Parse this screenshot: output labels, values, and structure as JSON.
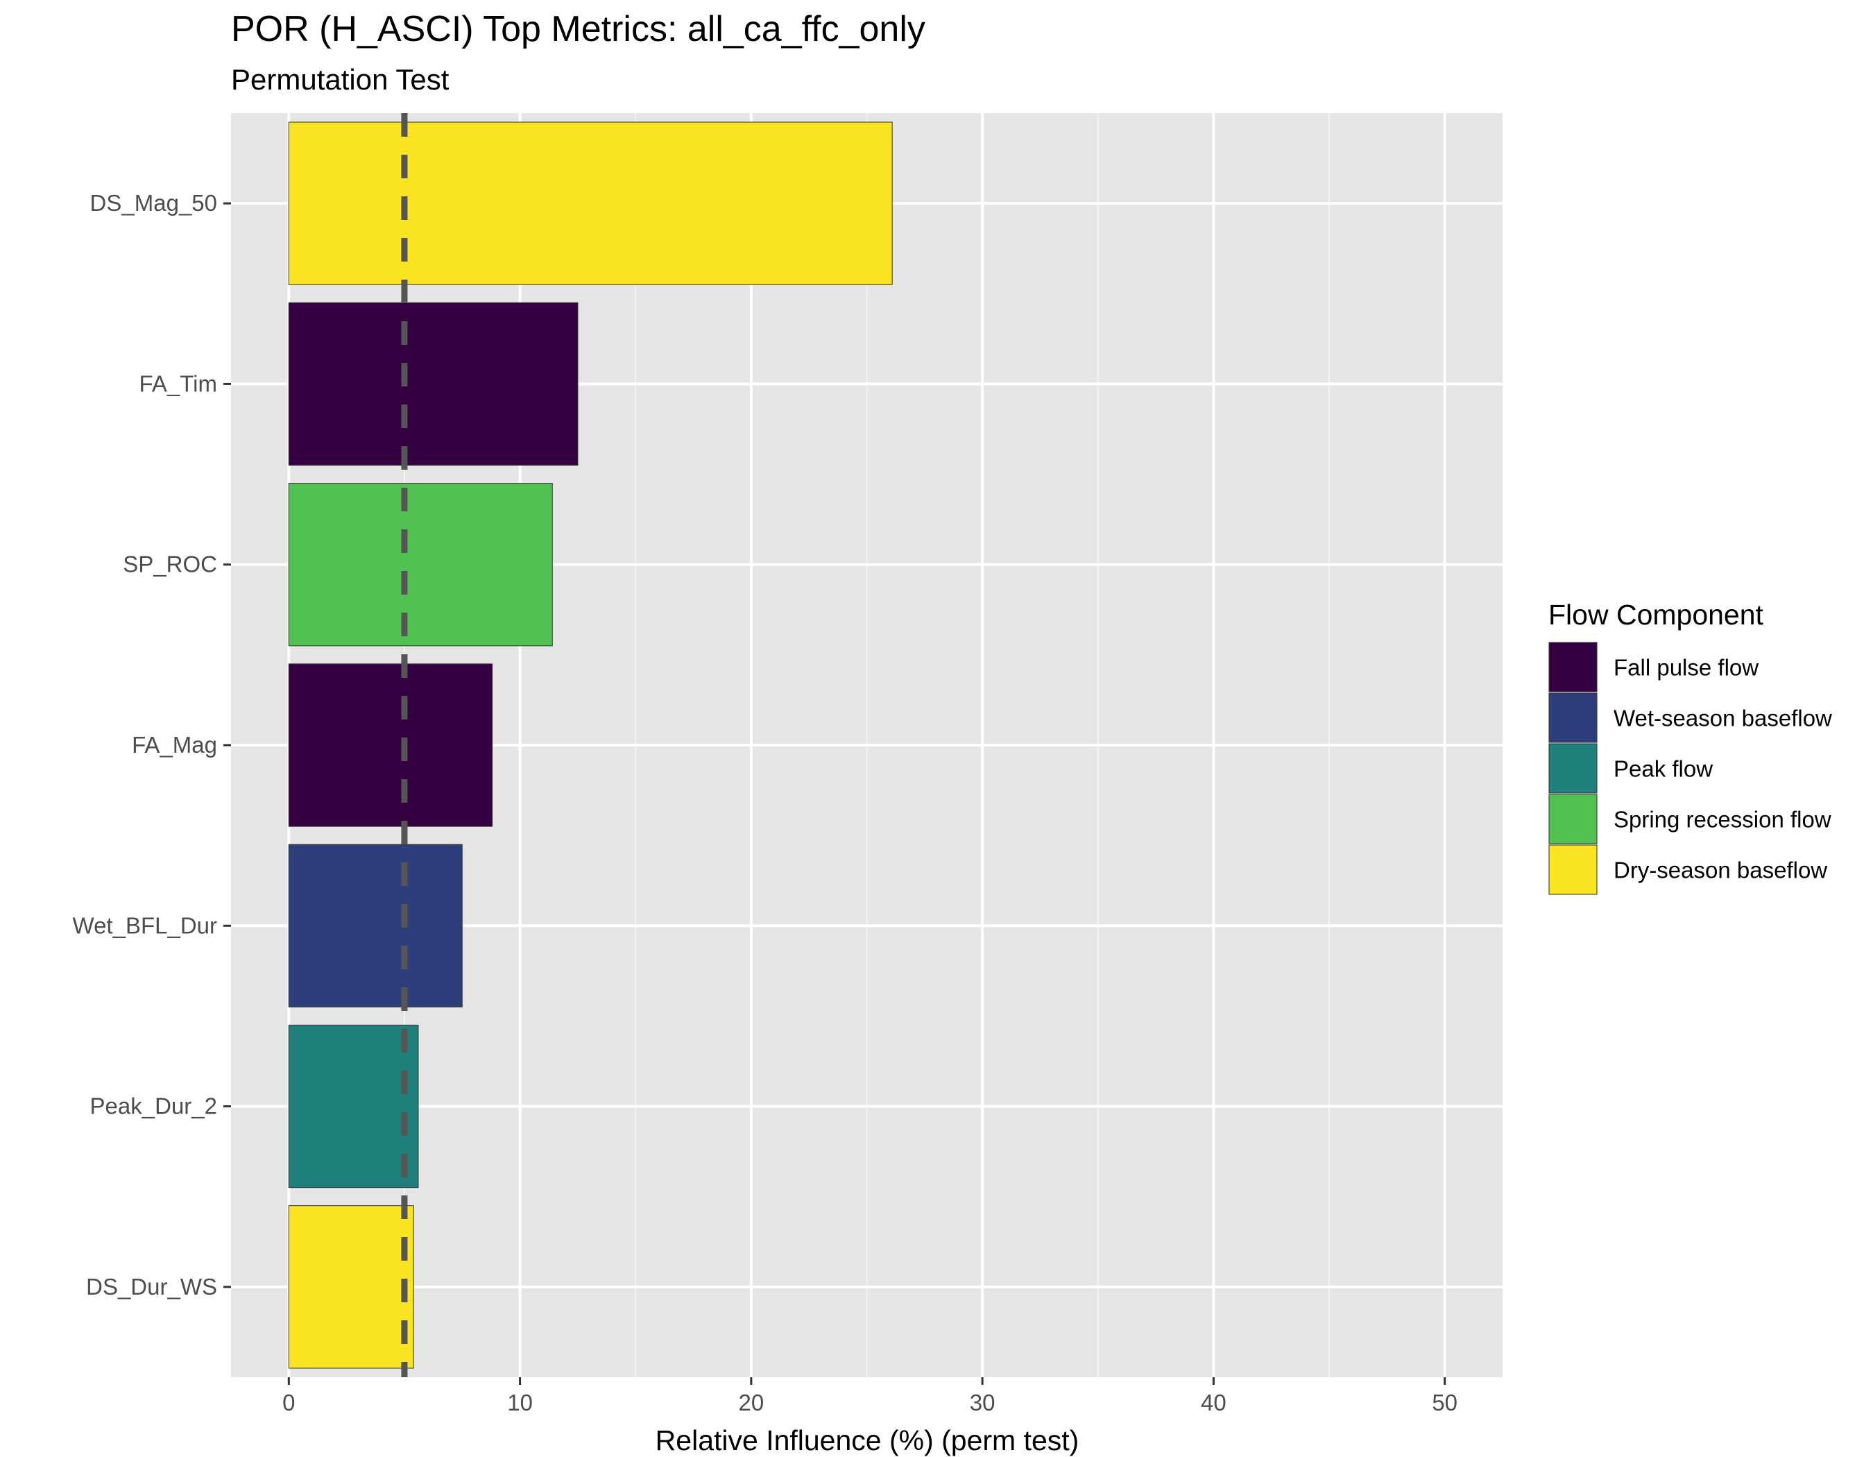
{
  "chart_data": {
    "type": "bar",
    "orientation": "horizontal",
    "title": "POR (H_ASCI) Top Metrics: all_ca_ffc_only",
    "subtitle": "Permutation Test",
    "xlabel": "Relative Influence (%) (perm test)",
    "ylabel": "",
    "xlim": [
      -2.5,
      52.5
    ],
    "xticks": [
      0,
      10,
      20,
      30,
      40,
      50
    ],
    "reference_line": {
      "x": 5,
      "style": "dashed",
      "color": "#555555"
    },
    "categories": [
      "DS_Mag_50",
      "FA_Tim",
      "SP_ROC",
      "FA_Mag",
      "Wet_BFL_Dur",
      "Peak_Dur_2",
      "DS_Dur_WS"
    ],
    "values": [
      26.1,
      12.5,
      11.4,
      8.8,
      7.5,
      5.6,
      5.4
    ],
    "bar_groups": [
      "Dry-season baseflow",
      "Fall pulse flow",
      "Spring recession flow",
      "Fall pulse flow",
      "Wet-season baseflow",
      "Peak flow",
      "Dry-season baseflow"
    ],
    "legend": {
      "title": "Flow Component",
      "position": "right",
      "entries": [
        {
          "label": "Fall pulse flow",
          "color": "#350042"
        },
        {
          "label": "Wet-season baseflow",
          "color": "#2d3e7a"
        },
        {
          "label": "Peak flow",
          "color": "#1f7f7a"
        },
        {
          "label": "Spring recession flow",
          "color": "#51c252"
        },
        {
          "label": "Dry-season baseflow",
          "color": "#fae321"
        }
      ]
    },
    "grid": true,
    "panel_background": "#e5e5e5"
  }
}
